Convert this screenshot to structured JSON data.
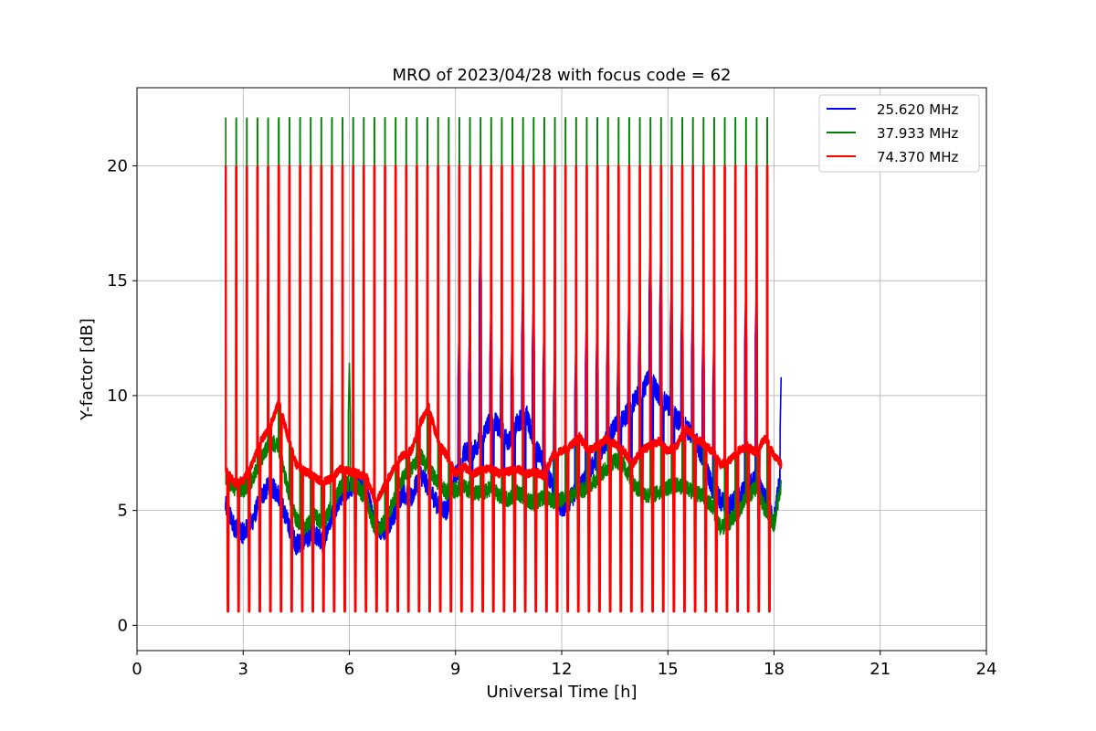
{
  "chart_data": {
    "type": "line",
    "title": "MRO of 2023/04/28 with focus code = 62",
    "xlabel": "Universal Time [h]",
    "ylabel": "Y-factor [dB]",
    "xlim": [
      0,
      24
    ],
    "ylim": [
      -1.1,
      23.4
    ],
    "xticks": [
      0,
      3,
      6,
      9,
      12,
      15,
      18,
      21,
      24
    ],
    "yticks": [
      0,
      5,
      10,
      15,
      20
    ],
    "grid": true,
    "legend_position": "top-right",
    "calibration": {
      "start_h": 2.5,
      "end_h": 18.0,
      "period_h": 0.3,
      "count": 52,
      "spike_top": {
        "green": 22.1,
        "red": 20.0
      },
      "dip_bottom": 0.6
    },
    "series": [
      {
        "name": "25.620 MHz",
        "color": "#0000ff",
        "x": [
          2.5,
          2.75,
          3.0,
          3.25,
          3.5,
          3.75,
          4.0,
          4.25,
          4.5,
          4.75,
          5.0,
          5.25,
          5.5,
          5.75,
          6.0,
          6.25,
          6.5,
          6.75,
          7.0,
          7.25,
          7.5,
          7.75,
          8.0,
          8.25,
          8.5,
          8.75,
          9.0,
          9.25,
          9.5,
          9.75,
          10.0,
          10.25,
          10.5,
          10.75,
          11.0,
          11.25,
          11.5,
          11.75,
          12.0,
          12.25,
          12.5,
          12.75,
          13.0,
          13.25,
          13.5,
          13.75,
          14.0,
          14.25,
          14.5,
          14.75,
          15.0,
          15.25,
          15.5,
          15.75,
          16.0,
          16.25,
          16.5,
          16.75,
          17.0,
          17.25,
          17.5,
          17.75,
          18.0,
          18.2
        ],
        "y": [
          5.2,
          4.3,
          4.0,
          4.5,
          5.6,
          6.1,
          5.7,
          4.5,
          3.5,
          3.8,
          4.0,
          3.6,
          4.8,
          5.6,
          6.0,
          6.2,
          5.8,
          4.2,
          4.1,
          4.8,
          5.8,
          5.5,
          6.6,
          6.0,
          5.2,
          5.0,
          6.5,
          7.5,
          7.6,
          8.2,
          9.0,
          8.6,
          8.0,
          8.8,
          9.2,
          7.8,
          7.0,
          6.0,
          5.0,
          5.5,
          6.0,
          6.6,
          7.3,
          8.0,
          8.6,
          9.0,
          9.6,
          10.2,
          10.8,
          10.0,
          9.6,
          9.0,
          8.6,
          8.2,
          7.2,
          6.0,
          5.4,
          5.2,
          5.6,
          6.0,
          6.4,
          5.6,
          4.5,
          6.8
        ],
        "peaks": [
          [
            9.1,
            13.0
          ],
          [
            9.4,
            13.2
          ],
          [
            9.7,
            17.1
          ],
          [
            10.0,
            13.8
          ],
          [
            10.3,
            12.6
          ],
          [
            10.6,
            13.0
          ],
          [
            10.9,
            14.8
          ],
          [
            11.2,
            14.3
          ],
          [
            11.5,
            13.1
          ],
          [
            11.8,
            11.9
          ],
          [
            12.4,
            12.3
          ],
          [
            12.7,
            13.6
          ],
          [
            13.0,
            13.3
          ],
          [
            13.3,
            13.4
          ],
          [
            13.6,
            12.5
          ],
          [
            13.9,
            14.4
          ],
          [
            14.2,
            13.6
          ],
          [
            14.5,
            16.7
          ],
          [
            14.8,
            16.1
          ],
          [
            15.1,
            15.2
          ],
          [
            15.4,
            14.6
          ],
          [
            15.7,
            14.2
          ],
          [
            16.0,
            13.3
          ],
          [
            16.3,
            12.6
          ],
          [
            17.2,
            14.5
          ],
          [
            17.5,
            14.8
          ],
          [
            18.2,
            10.8
          ]
        ]
      },
      {
        "name": "37.933 MHz",
        "color": "#008000",
        "x": [
          2.5,
          2.75,
          3.0,
          3.25,
          3.5,
          3.75,
          4.0,
          4.25,
          4.5,
          4.75,
          5.0,
          5.25,
          5.5,
          5.75,
          6.0,
          6.25,
          6.5,
          6.75,
          7.0,
          7.25,
          7.5,
          7.75,
          8.0,
          8.25,
          8.5,
          8.75,
          9.0,
          9.25,
          9.5,
          9.75,
          10.0,
          10.25,
          10.5,
          10.75,
          11.0,
          11.25,
          11.5,
          11.75,
          12.0,
          12.25,
          12.5,
          12.75,
          13.0,
          13.25,
          13.5,
          13.75,
          14.0,
          14.25,
          14.5,
          14.75,
          15.0,
          15.25,
          15.5,
          15.75,
          16.0,
          16.25,
          16.5,
          16.75,
          17.0,
          17.25,
          17.5,
          17.75,
          18.0,
          18.2
        ],
        "y": [
          6.4,
          6.0,
          5.9,
          6.3,
          7.2,
          8.0,
          7.8,
          6.0,
          4.6,
          4.2,
          4.8,
          4.4,
          5.2,
          6.0,
          6.2,
          6.0,
          5.4,
          4.0,
          4.5,
          5.4,
          6.4,
          6.8,
          7.4,
          6.8,
          6.2,
          5.8,
          5.9,
          6.0,
          5.8,
          5.7,
          6.0,
          5.6,
          5.5,
          5.8,
          5.5,
          5.3,
          5.6,
          5.4,
          5.5,
          5.6,
          5.8,
          6.0,
          6.4,
          6.8,
          7.2,
          7.0,
          6.2,
          5.8,
          5.6,
          5.8,
          6.0,
          6.1,
          6.0,
          5.8,
          5.6,
          5.2,
          4.2,
          4.5,
          5.0,
          5.6,
          6.0,
          5.0,
          4.4,
          6.2
        ],
        "peaks": [
          [
            5.5,
            11.4
          ],
          [
            6.0,
            11.4
          ]
        ]
      },
      {
        "name": "74.370 MHz",
        "color": "#ff0000",
        "x": [
          2.5,
          2.75,
          3.0,
          3.25,
          3.5,
          3.75,
          4.0,
          4.25,
          4.5,
          4.75,
          5.0,
          5.25,
          5.5,
          5.75,
          6.0,
          6.25,
          6.5,
          6.75,
          7.0,
          7.25,
          7.5,
          7.75,
          8.0,
          8.25,
          8.5,
          8.75,
          9.0,
          9.25,
          9.5,
          9.75,
          10.0,
          10.25,
          10.5,
          10.75,
          11.0,
          11.25,
          11.5,
          11.75,
          12.0,
          12.25,
          12.5,
          12.75,
          13.0,
          13.25,
          13.5,
          13.75,
          14.0,
          14.25,
          14.5,
          14.75,
          15.0,
          15.25,
          15.5,
          15.75,
          16.0,
          16.25,
          16.5,
          16.75,
          17.0,
          17.25,
          17.5,
          17.75,
          18.0,
          18.2
        ],
        "y": [
          6.8,
          6.2,
          6.3,
          7.0,
          8.0,
          8.6,
          9.7,
          8.3,
          7.0,
          6.7,
          6.5,
          6.2,
          6.4,
          6.8,
          6.7,
          6.6,
          6.4,
          5.3,
          6.1,
          6.8,
          7.4,
          7.6,
          8.8,
          9.5,
          8.0,
          7.4,
          6.6,
          6.9,
          6.6,
          6.8,
          6.8,
          6.6,
          6.7,
          6.8,
          6.6,
          6.7,
          6.5,
          7.4,
          7.6,
          7.8,
          8.2,
          7.6,
          7.8,
          8.1,
          7.9,
          7.6,
          7.0,
          7.6,
          7.8,
          8.0,
          7.6,
          7.8,
          8.6,
          8.2,
          7.9,
          7.6,
          7.0,
          7.2,
          7.6,
          7.8,
          7.5,
          8.2,
          7.4,
          7.0
        ],
        "peaks": []
      }
    ]
  }
}
